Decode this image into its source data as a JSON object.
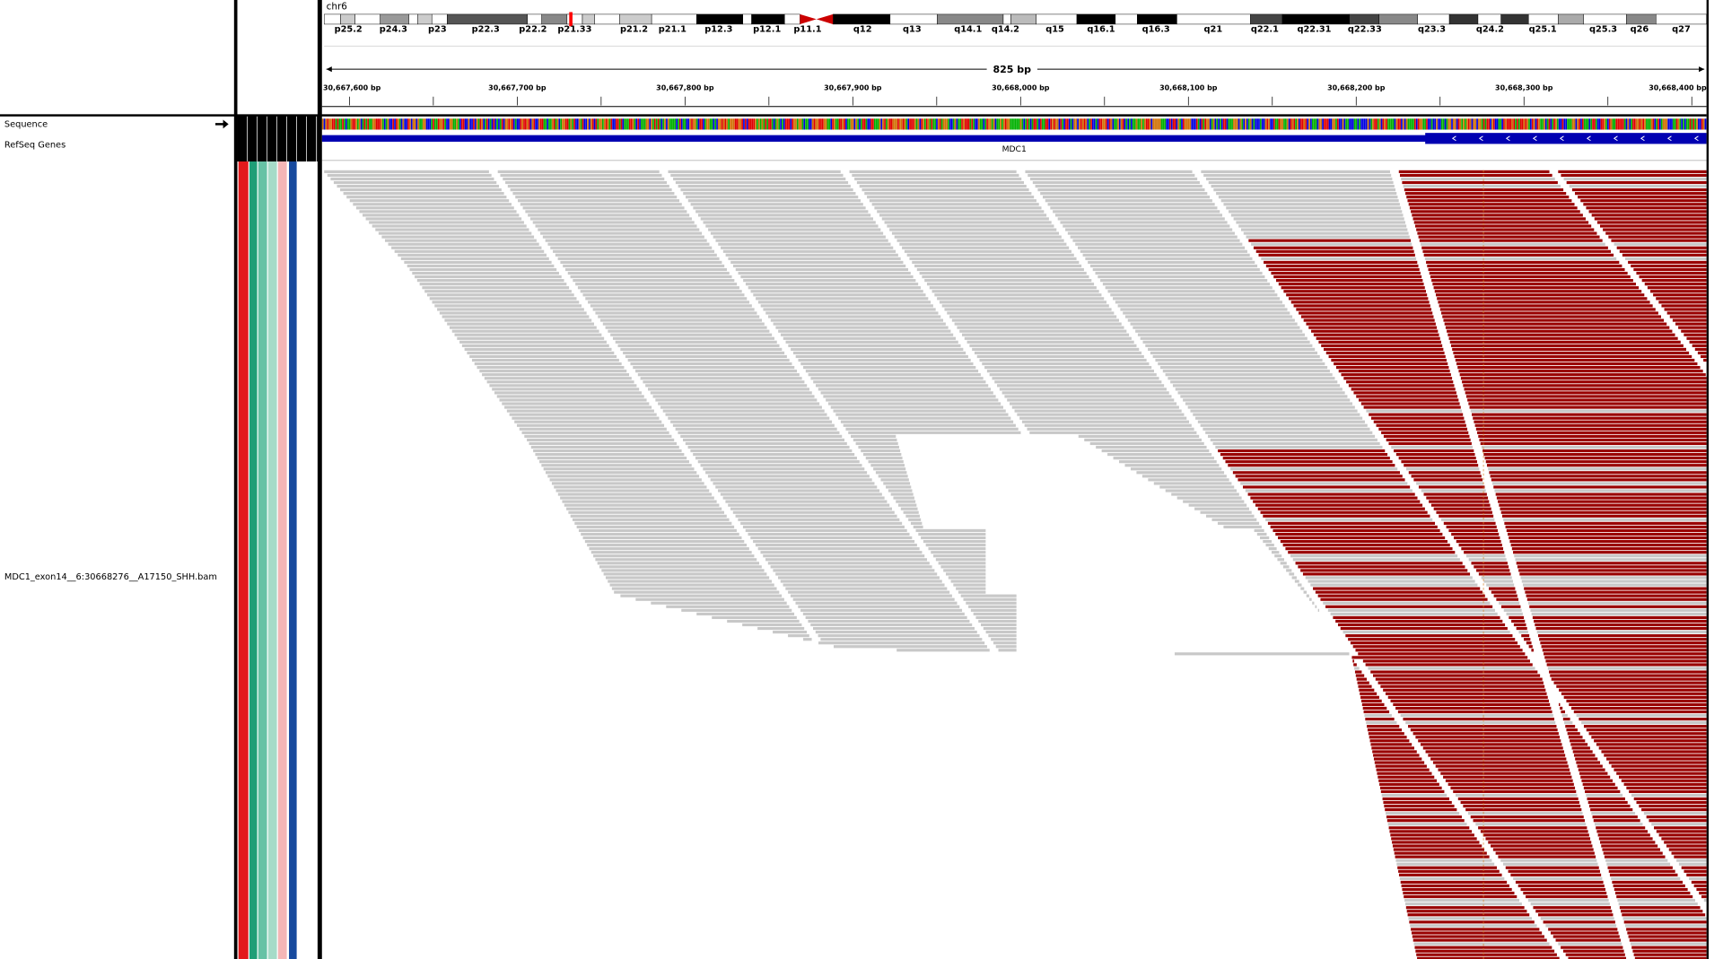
{
  "header": {
    "chromosome": "chr6",
    "cytobands": [
      "p25.2",
      "p24.3",
      "p23",
      "p22.3",
      "p22.2",
      "p21.33",
      "p21.2",
      "p21.1",
      "p12.3",
      "p12.1",
      "p11.1",
      "q12",
      "q13",
      "q14.1",
      "q14.2",
      "q15",
      "q16.1",
      "q16.3",
      "q21",
      "q22.1",
      "q22.31",
      "q22.33",
      "q23.3",
      "q24.2",
      "q25.1",
      "q25.3",
      "q26",
      "q27"
    ],
    "span": "825 bp",
    "ruler": [
      "30,667,600 bp",
      "30,667,700 bp",
      "30,667,800 bp",
      "30,667,900 bp",
      "30,668,000 bp",
      "30,668,100 bp",
      "30,668,200 bp",
      "30,668,300 bp",
      "30,668,400 bp"
    ]
  },
  "tracks": {
    "sequence": "Sequence",
    "refseq": "RefSeq Genes",
    "gene": "MDC1",
    "bam": "MDC1_exon14__6:30668276__A17150_SHH.bam"
  }
}
